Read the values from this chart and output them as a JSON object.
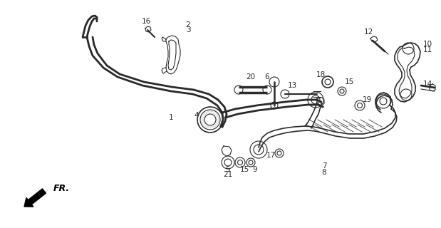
{
  "bg_color": "#ffffff",
  "line_color": "#2a2a2a",
  "label_color": "#2a2a2a",
  "figsize": [
    6.19,
    3.2
  ],
  "dpi": 100,
  "xlim": [
    0,
    619
  ],
  "ylim": [
    0,
    320
  ]
}
